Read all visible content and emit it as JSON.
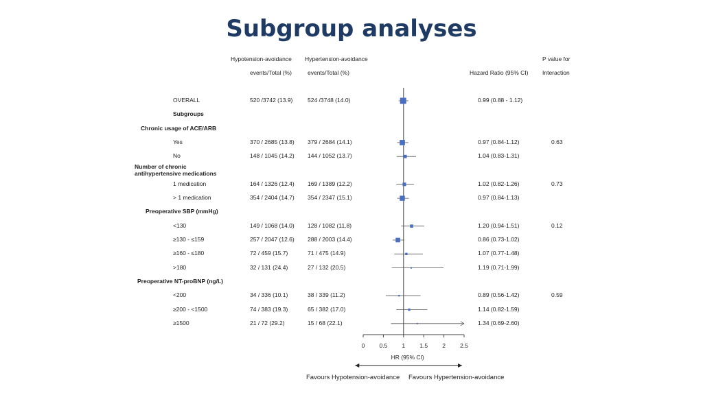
{
  "slide": {
    "title": "Subgroup analyses"
  },
  "headers": {
    "hypo": "Hypotension-avoidance",
    "hypo_sub": "events/Total  (%)",
    "hyper": "Hypertension-avoidance",
    "hyper_sub": "events/Total  (%)",
    "hr": "Hazard Ratio (95% CI)",
    "pval_1": "P value  for",
    "pval_2": "Interaction"
  },
  "x_axis": {
    "label": "HR (95% CI)",
    "ticks": [
      "0",
      "0.5",
      "1",
      "1.5",
      "2",
      "2.5"
    ]
  },
  "favours": {
    "left": "Favours Hypotension-avoidance",
    "right": "Favours Hypertension-avoidance"
  },
  "chart_data": {
    "type": "forest",
    "xlim": [
      0,
      2.5
    ],
    "reference_line": 1,
    "rows": [
      {
        "label": "OVERALL",
        "kind": "item",
        "hypo": "520 /3742 (13.9)",
        "hyper": "524 /3748 (14.0)",
        "hr": 0.99,
        "lo": 0.88,
        "hi": 1.12,
        "hr_text": "0.99 (0.88 - 1.12)",
        "p": ""
      },
      {
        "label": "Subgroups",
        "kind": "subhead"
      },
      {
        "label": "Chronic usage of  ACE/ARB",
        "kind": "group"
      },
      {
        "label": "Yes",
        "kind": "item",
        "hypo": "370 / 2685 (13.8)",
        "hyper": "379 / 2684 (14.1)",
        "hr": 0.97,
        "lo": 0.84,
        "hi": 1.12,
        "hr_text": "0.97 (0.84-1.12)",
        "p": "0.63"
      },
      {
        "label": "No",
        "kind": "item",
        "hypo": "148 / 1045 (14.2)",
        "hyper": "144 / 1052 (13.7)",
        "hr": 1.04,
        "lo": 0.83,
        "hi": 1.31,
        "hr_text": "1.04 (0.83-1.31)",
        "p": ""
      },
      {
        "label": "Number of chronic",
        "label2": "antihypertensive  medications",
        "kind": "group"
      },
      {
        "label": "1 medication",
        "kind": "item",
        "hypo": "164 / 1326 (12.4)",
        "hyper": "169 / 1389 (12.2)",
        "hr": 1.02,
        "lo": 0.82,
        "hi": 1.26,
        "hr_text": "1.02 (0.82-1.26)",
        "p": "0.73"
      },
      {
        "label": "> 1 medication",
        "kind": "item",
        "hypo": "354 / 2404 (14.7)",
        "hyper": "354 / 2347 (15.1)",
        "hr": 0.97,
        "lo": 0.84,
        "hi": 1.13,
        "hr_text": "0.97 (0.84-1.13)",
        "p": ""
      },
      {
        "label": "Preoperative SBP (mmHg)",
        "kind": "group"
      },
      {
        "label": "<130",
        "kind": "item",
        "hypo": "149 / 1068 (14.0)",
        "hyper": "128 / 1082 (11.8)",
        "hr": 1.2,
        "lo": 0.94,
        "hi": 1.51,
        "hr_text": "1.20 (0.94-1.51)",
        "p": "0.12"
      },
      {
        "label": "≥130 - ≤159",
        "kind": "item",
        "hypo": "257 / 2047 (12.6)",
        "hyper": "288 / 2003 (14.4)",
        "hr": 0.86,
        "lo": 0.73,
        "hi": 1.02,
        "hr_text": "0.86 (0.73-1.02)",
        "p": ""
      },
      {
        "label": "≥160 - ≤180",
        "kind": "item",
        "hypo": "72 / 459 (15.7)",
        "hyper": "71 / 475 (14.9)",
        "hr": 1.07,
        "lo": 0.77,
        "hi": 1.48,
        "hr_text": "1.07 (0.77-1.48)",
        "p": ""
      },
      {
        "label": ">180",
        "kind": "item",
        "hypo": "32 / 131 (24.4)",
        "hyper": "27 / 132 (20.5)",
        "hr": 1.19,
        "lo": 0.71,
        "hi": 1.99,
        "hr_text": "1.19 (0.71-1.99)",
        "p": ""
      },
      {
        "label": "Preoperative NT-proBNP (ng/L)",
        "kind": "group"
      },
      {
        "label": "<200",
        "kind": "item",
        "hypo": "34 / 336 (10.1)",
        "hyper": "38 / 339 (11.2)",
        "hr": 0.89,
        "lo": 0.56,
        "hi": 1.42,
        "hr_text": "0.89 (0.56-1.42)",
        "p": "0.59"
      },
      {
        "label": "≥200  - <1500",
        "kind": "item",
        "hypo": "74 / 383 (19.3)",
        "hyper": "65 / 382 (17.0)",
        "hr": 1.14,
        "lo": 0.82,
        "hi": 1.59,
        "hr_text": "1.14 (0.82-1.59)",
        "p": ""
      },
      {
        "label": "≥1500",
        "kind": "item",
        "hypo": "21 / 72 (29.2)",
        "hyper": "15 / 68 (22.1)",
        "hr": 1.34,
        "lo": 0.69,
        "hi": 2.6,
        "hr_text": "1.34 (0.69-2.60)",
        "p": ""
      }
    ]
  },
  "colors": {
    "marker": "#4a6fc0",
    "line": "#555555",
    "title": "#1f3b63"
  }
}
